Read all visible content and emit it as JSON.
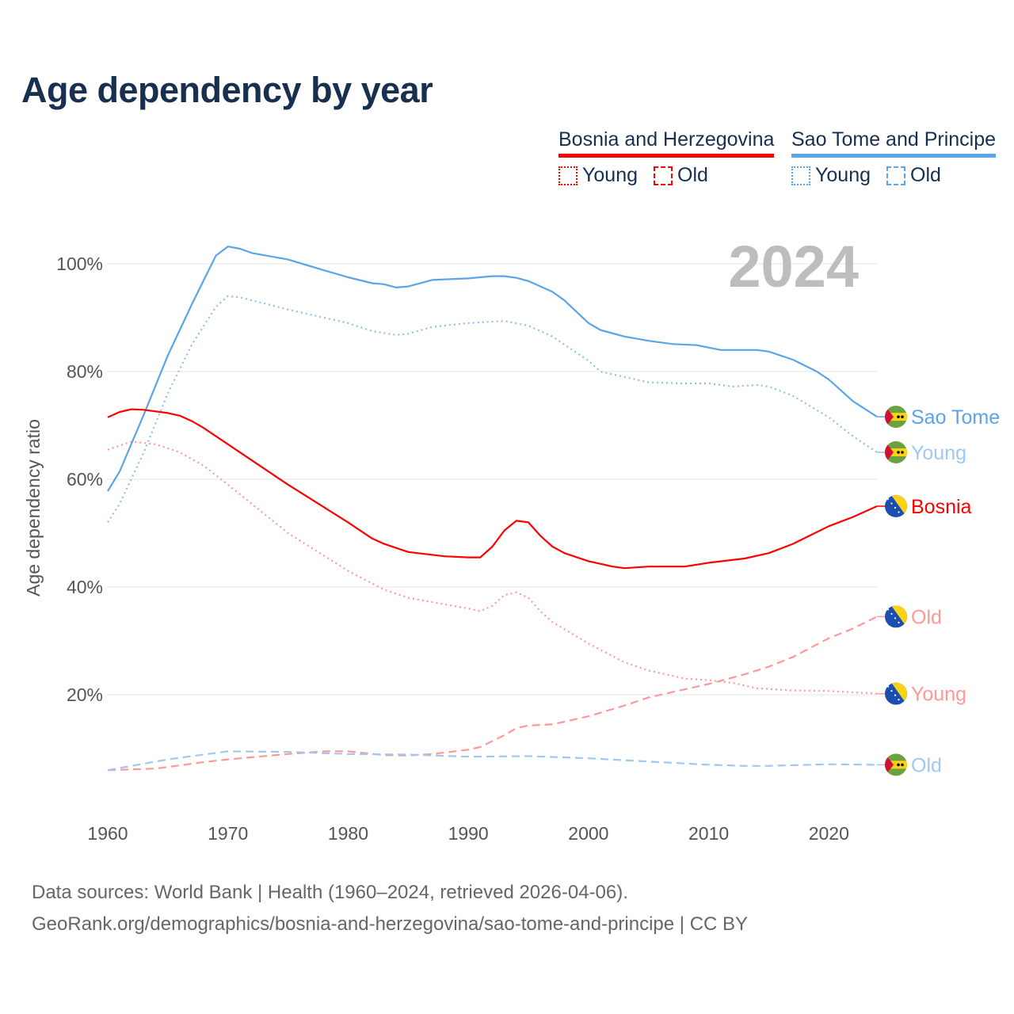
{
  "title": "Age dependency by year",
  "legend": {
    "countries": [
      {
        "name": "Bosnia and Herzegovina",
        "color": "#ff0000",
        "young": "Young",
        "old": "Old"
      },
      {
        "name": "Sao Tome and Principe",
        "color": "#5ba4e8",
        "young": "Young",
        "old": "Old"
      }
    ]
  },
  "footer": {
    "line1": "Data sources: World Bank | Health (1960–2024, retrieved 2026-04-06).",
    "line2": "GeoRank.org/demographics/bosnia-and-herzegovina/sao-tome-and-principe | CC BY"
  },
  "chart_data": {
    "type": "line",
    "title": "Age dependency by year",
    "year_watermark": "2024",
    "xlabel": "",
    "ylabel": "Age dependency ratio",
    "xlim": [
      1960,
      2024
    ],
    "ylim": [
      0,
      105
    ],
    "x_ticks": [
      "1960",
      "1970",
      "1980",
      "1990",
      "2000",
      "2010",
      "2020"
    ],
    "y_ticks": [
      "20%",
      "40%",
      "60%",
      "80%",
      "100%"
    ],
    "y_tick_values": [
      20,
      40,
      60,
      80,
      100
    ],
    "grid": true,
    "legend_position": "top-right",
    "series": [
      {
        "name": "Sao Tome and Principe",
        "end_label": "Sao Tome",
        "flag": "sao-tome",
        "color": "#5ba4e8",
        "label_color": "#5ba4e8",
        "style": "solid",
        "points": [
          [
            1960,
            57.8
          ],
          [
            1961,
            61.5
          ],
          [
            1963,
            72
          ],
          [
            1965,
            83
          ],
          [
            1967,
            92.5
          ],
          [
            1969,
            101.5
          ],
          [
            1970,
            103.2
          ],
          [
            1971,
            102.8
          ],
          [
            1972,
            102
          ],
          [
            1975,
            100.8
          ],
          [
            1978,
            98.8
          ],
          [
            1980,
            97.5
          ],
          [
            1982,
            96.4
          ],
          [
            1983,
            96.2
          ],
          [
            1984,
            95.6
          ],
          [
            1985,
            95.8
          ],
          [
            1987,
            97
          ],
          [
            1990,
            97.3
          ],
          [
            1992,
            97.7
          ],
          [
            1993,
            97.7
          ],
          [
            1994,
            97.4
          ],
          [
            1995,
            96.8
          ],
          [
            1997,
            94.8
          ],
          [
            1998,
            93.2
          ],
          [
            2000,
            89
          ],
          [
            2001,
            87.7
          ],
          [
            2003,
            86.5
          ],
          [
            2005,
            85.7
          ],
          [
            2007,
            85.1
          ],
          [
            2009,
            84.9
          ],
          [
            2011,
            84
          ],
          [
            2014,
            84
          ],
          [
            2015,
            83.7
          ],
          [
            2017,
            82.2
          ],
          [
            2019,
            80
          ],
          [
            2020,
            78.5
          ],
          [
            2022,
            74.5
          ],
          [
            2024,
            71.6
          ]
        ]
      },
      {
        "name": "Sao Tome and Principe Young",
        "end_label": "Young",
        "flag": "sao-tome",
        "color": "#8fbfee",
        "label_color": "#a0c8f0",
        "style": "dotted",
        "points": [
          [
            1960,
            52
          ],
          [
            1961,
            55.5
          ],
          [
            1963,
            65
          ],
          [
            1965,
            76
          ],
          [
            1967,
            85
          ],
          [
            1969,
            92
          ],
          [
            1970,
            94
          ],
          [
            1971,
            93.8
          ],
          [
            1975,
            91.5
          ],
          [
            1980,
            89
          ],
          [
            1982,
            87.5
          ],
          [
            1984,
            86.8
          ],
          [
            1985,
            87
          ],
          [
            1987,
            88.3
          ],
          [
            1990,
            89
          ],
          [
            1993,
            89.4
          ],
          [
            1995,
            88.5
          ],
          [
            1997,
            86.5
          ],
          [
            2000,
            82
          ],
          [
            2001,
            80
          ],
          [
            2005,
            78
          ],
          [
            2008,
            77.8
          ],
          [
            2010,
            77.8
          ],
          [
            2012,
            77.2
          ],
          [
            2014,
            77.5
          ],
          [
            2015,
            77.2
          ],
          [
            2017,
            75.5
          ],
          [
            2020,
            71.5
          ],
          [
            2022,
            68
          ],
          [
            2024,
            65
          ]
        ]
      },
      {
        "name": "Bosnia and Herzegovina",
        "end_label": "Bosnia",
        "flag": "bosnia",
        "color": "#ff0000",
        "label_color": "#ff0000",
        "style": "solid",
        "points": [
          [
            1960,
            71.5
          ],
          [
            1961,
            72.5
          ],
          [
            1962,
            73
          ],
          [
            1963,
            72.9
          ],
          [
            1965,
            72.3
          ],
          [
            1966,
            71.8
          ],
          [
            1967,
            70.8
          ],
          [
            1968,
            69.5
          ],
          [
            1970,
            66.5
          ],
          [
            1975,
            59
          ],
          [
            1980,
            52
          ],
          [
            1982,
            49
          ],
          [
            1983,
            48
          ],
          [
            1985,
            46.5
          ],
          [
            1988,
            45.7
          ],
          [
            1990,
            45.5
          ],
          [
            1991,
            45.5
          ],
          [
            1992,
            47.5
          ],
          [
            1993,
            50.5
          ],
          [
            1994,
            52.3
          ],
          [
            1995,
            52
          ],
          [
            1996,
            49.5
          ],
          [
            1997,
            47.5
          ],
          [
            1998,
            46.3
          ],
          [
            2000,
            44.8
          ],
          [
            2002,
            43.8
          ],
          [
            2003,
            43.5
          ],
          [
            2005,
            43.8
          ],
          [
            2008,
            43.8
          ],
          [
            2010,
            44.5
          ],
          [
            2013,
            45.3
          ],
          [
            2015,
            46.3
          ],
          [
            2017,
            48
          ],
          [
            2020,
            51.3
          ],
          [
            2022,
            53
          ],
          [
            2024,
            55
          ]
        ]
      },
      {
        "name": "Bosnia and Herzegovina Old",
        "end_label": "Old",
        "flag": "bosnia",
        "color": "#ff9999",
        "label_color": "#ff9999",
        "style": "dashed",
        "points": [
          [
            1960,
            6
          ],
          [
            1964,
            6.3
          ],
          [
            1968,
            7.5
          ],
          [
            1970,
            8
          ],
          [
            1975,
            9
          ],
          [
            1978,
            9.5
          ],
          [
            1980,
            9.5
          ],
          [
            1983,
            8.8
          ],
          [
            1985,
            8.7
          ],
          [
            1987,
            9
          ],
          [
            1990,
            9.8
          ],
          [
            1991,
            10.3
          ],
          [
            1993,
            12.5
          ],
          [
            1994,
            13.8
          ],
          [
            1995,
            14.3
          ],
          [
            1997,
            14.5
          ],
          [
            2000,
            16
          ],
          [
            2003,
            18
          ],
          [
            2005,
            19.5
          ],
          [
            2008,
            21
          ],
          [
            2010,
            22
          ],
          [
            2013,
            23.8
          ],
          [
            2015,
            25.2
          ],
          [
            2017,
            27
          ],
          [
            2020,
            30.5
          ],
          [
            2022,
            32.3
          ],
          [
            2024,
            34.5
          ]
        ]
      },
      {
        "name": "Bosnia and Herzegovina Young",
        "end_label": "Young",
        "flag": "bosnia",
        "color": "#ff9999",
        "label_color": "#ff9999",
        "style": "dotted",
        "points": [
          [
            1960,
            65.5
          ],
          [
            1962,
            67
          ],
          [
            1964,
            66.5
          ],
          [
            1966,
            65
          ],
          [
            1968,
            62.5
          ],
          [
            1970,
            59
          ],
          [
            1975,
            50
          ],
          [
            1980,
            43
          ],
          [
            1983,
            39.5
          ],
          [
            1985,
            38
          ],
          [
            1990,
            36
          ],
          [
            1991,
            35.5
          ],
          [
            1992,
            36.5
          ],
          [
            1993,
            38.5
          ],
          [
            1994,
            39
          ],
          [
            1995,
            38
          ],
          [
            1996,
            35.5
          ],
          [
            1997,
            33.5
          ],
          [
            2000,
            29.5
          ],
          [
            2003,
            26
          ],
          [
            2005,
            24.5
          ],
          [
            2008,
            23
          ],
          [
            2010,
            22.7
          ],
          [
            2012,
            22.2
          ],
          [
            2014,
            21.2
          ],
          [
            2017,
            20.8
          ],
          [
            2020,
            20.7
          ],
          [
            2024,
            20.2
          ]
        ]
      },
      {
        "name": "Sao Tome and Principe Old",
        "end_label": "Old",
        "flag": "sao-tome",
        "color": "#a0c8f0",
        "label_color": "#a0c8f0",
        "style": "dashed",
        "points": [
          [
            1960,
            6
          ],
          [
            1965,
            8
          ],
          [
            1970,
            9.5
          ],
          [
            1975,
            9.4
          ],
          [
            1980,
            9
          ],
          [
            1985,
            8.9
          ],
          [
            1990,
            8.5
          ],
          [
            1995,
            8.6
          ],
          [
            2000,
            8.2
          ],
          [
            2005,
            7.6
          ],
          [
            2010,
            7
          ],
          [
            2013,
            6.8
          ],
          [
            2015,
            6.8
          ],
          [
            2020,
            7.1
          ],
          [
            2024,
            7
          ]
        ]
      }
    ]
  }
}
